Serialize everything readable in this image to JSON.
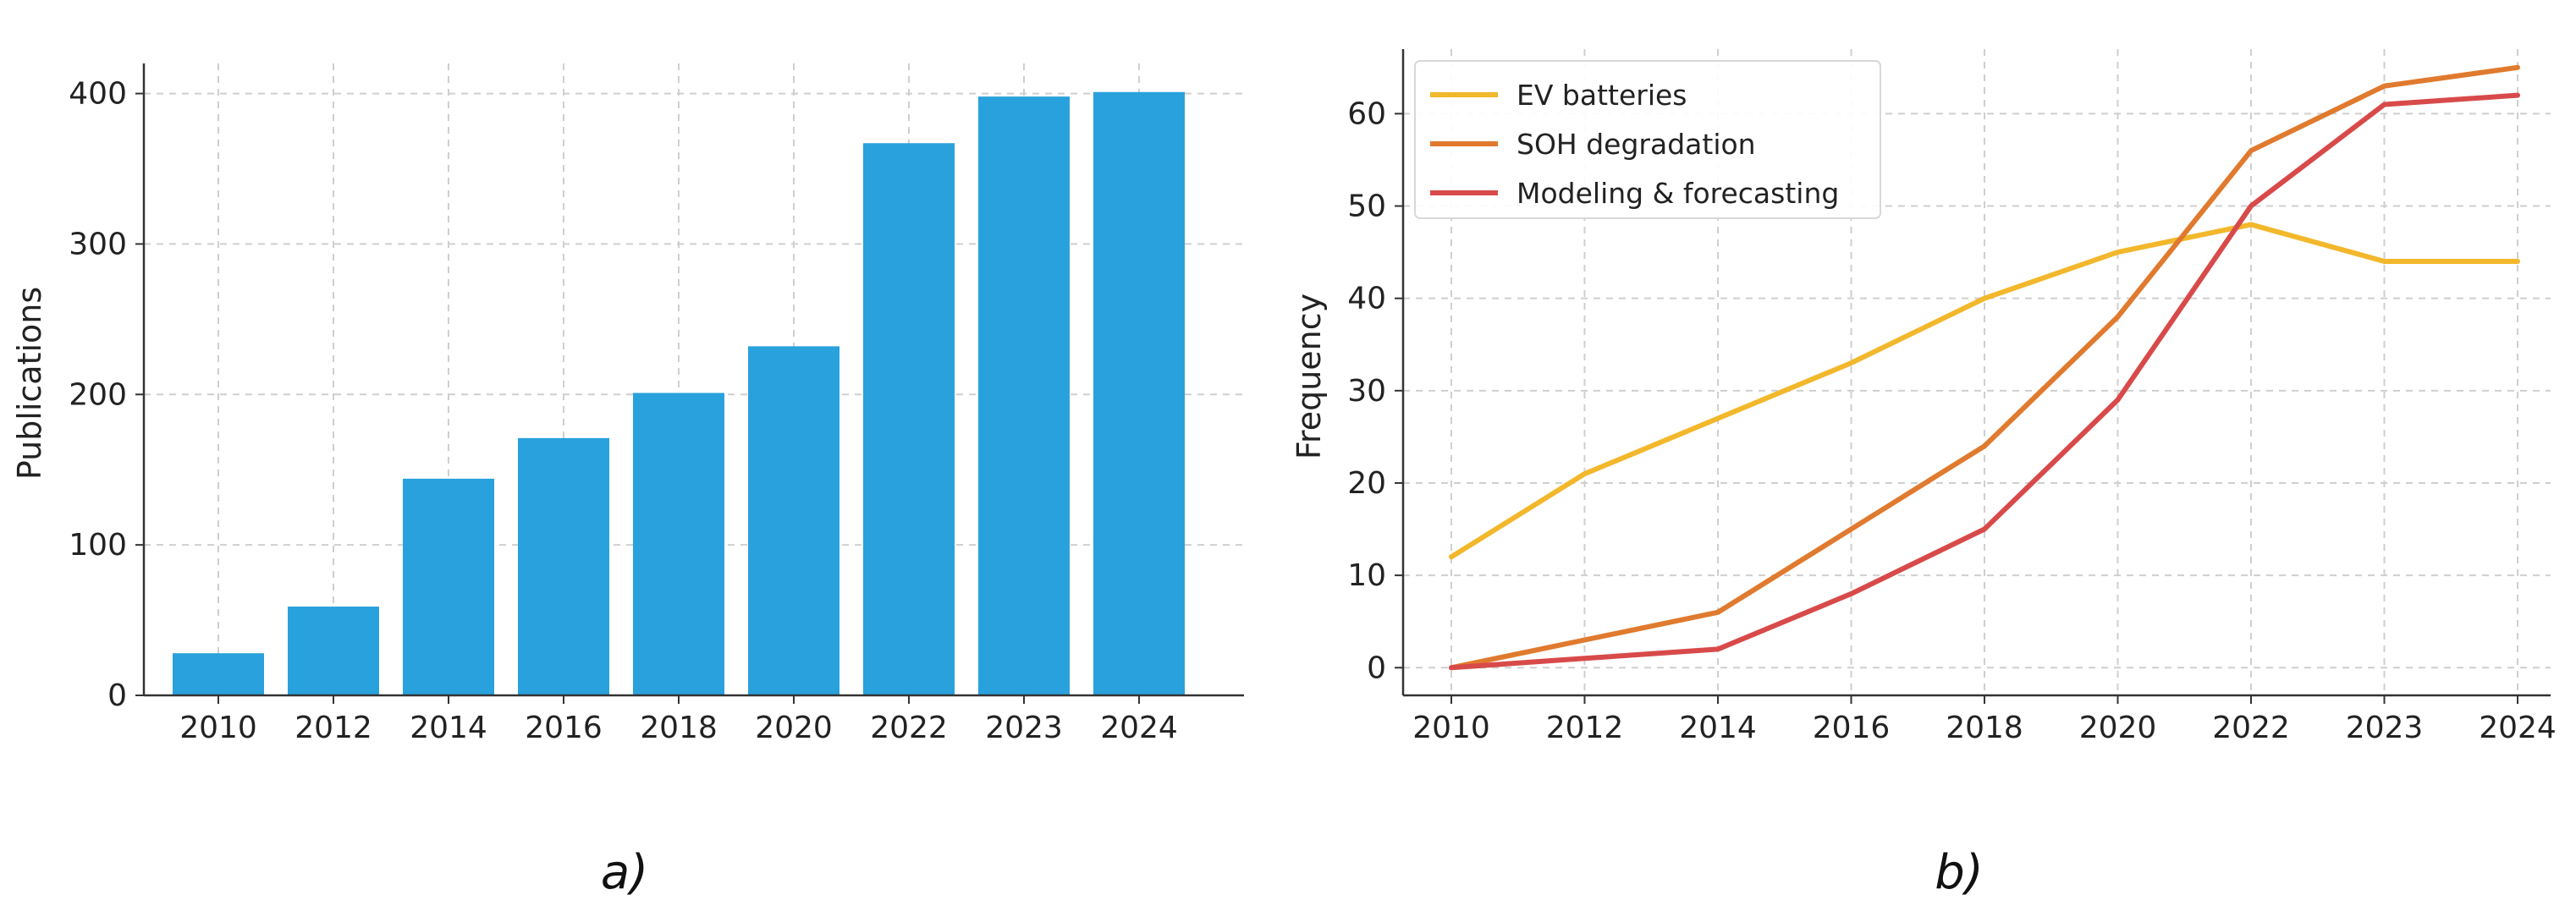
{
  "chart_data": [
    {
      "type": "bar",
      "panel_label": "a)",
      "categories": [
        "2010",
        "2012",
        "2014",
        "2016",
        "2018",
        "2020",
        "2022",
        "2023",
        "2024"
      ],
      "values": [
        28,
        59,
        144,
        171,
        201,
        232,
        367,
        398,
        401
      ],
      "xlabel": "",
      "ylabel": "Publications",
      "ylim": [
        0,
        420
      ],
      "yticks": [
        0,
        100,
        200,
        300,
        400
      ],
      "grid": true,
      "bar_color": "#29a1dc"
    },
    {
      "type": "line",
      "panel_label": "b)",
      "x": [
        "2010",
        "2012",
        "2014",
        "2016",
        "2018",
        "2020",
        "2022",
        "2023",
        "2024"
      ],
      "series": [
        {
          "name": "EV batteries",
          "color": "#f2b72b",
          "values": [
            12,
            21,
            27,
            33,
            40,
            45,
            48,
            44,
            44
          ]
        },
        {
          "name": "SOH degradation",
          "color": "#e07a2e",
          "values": [
            0,
            3,
            6,
            15,
            24,
            38,
            56,
            63,
            65
          ]
        },
        {
          "name": "Modeling & forecasting",
          "color": "#d84a4a",
          "values": [
            0,
            1,
            2,
            8,
            15,
            29,
            50,
            61,
            62
          ]
        }
      ],
      "xlabel": "",
      "ylabel": "Frequency",
      "ylim": [
        -3,
        67
      ],
      "yticks": [
        0,
        10,
        20,
        30,
        40,
        50,
        60
      ],
      "grid": true,
      "legend": "top-left"
    }
  ]
}
